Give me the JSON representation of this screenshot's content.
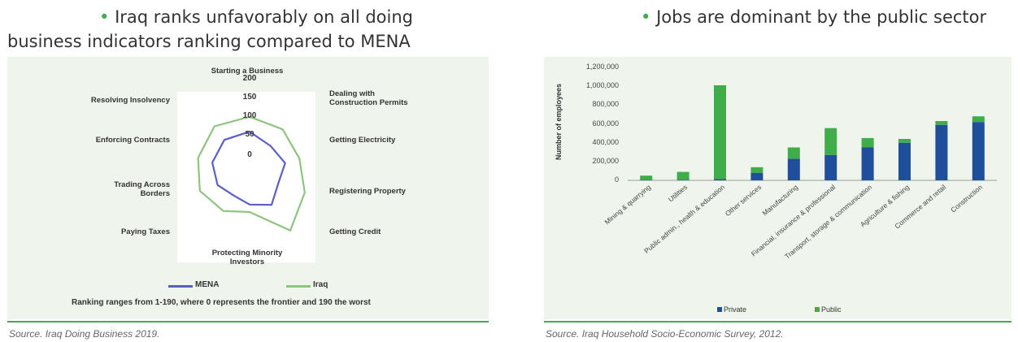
{
  "left": {
    "headline_line1": "Iraq ranks unfavorably on all doing",
    "headline_line2": "business indicators ranking compared to MENA",
    "bullet": "•",
    "footnote": "Ranking ranges from 1-190, where 0 represents the frontier and 190 the worst",
    "source": "Source. Iraq Doing Business 2019.",
    "colors": {
      "mena": "#5b5fc4",
      "iraq": "#8fc37f",
      "accent": "#3fae49"
    }
  },
  "right": {
    "headline": "Jobs are dominant by the public sector",
    "bullet": "•",
    "source": "Source. Iraq Household Socio-Economic Survey, 2012.",
    "colors": {
      "private": "#1f4e9c",
      "public": "#3fae49"
    }
  },
  "chart_data": [
    {
      "type": "radar",
      "categories": [
        "Starting a Business",
        "Dealing with Construction Permits",
        "Getting Electricity",
        "Registering Property",
        "Getting Credit",
        "Protecting Minority Investors",
        "Paying Taxes",
        "Trading Across Borders",
        "Enforcing Contracts",
        "Resolving Insolvency"
      ],
      "category_lines": [
        [
          "Starting a Business"
        ],
        [
          "Dealing with",
          "Construction Permits"
        ],
        [
          "Getting Electricity"
        ],
        [
          "Registering Property"
        ],
        [
          "Getting Credit"
        ],
        [
          "Protecting Minority",
          "Investors"
        ],
        [
          "Paying Taxes"
        ],
        [
          "Trading Across",
          "Borders"
        ],
        [
          "Enforcing Contracts"
        ],
        [
          "Resolving Insolvency"
        ]
      ],
      "radial_ticks": [
        "200",
        "150",
        "100",
        "50",
        "0"
      ],
      "rlim": [
        0,
        200
      ],
      "series": [
        {
          "name": "MENA",
          "values": [
            115,
            95,
            100,
            80,
            100,
            80,
            70,
            90,
            105,
            115
          ]
        },
        {
          "name": "Iraq",
          "values": [
            155,
            150,
            140,
            155,
            185,
            100,
            120,
            140,
            145,
            160
          ]
        }
      ],
      "legend_position": "bottom"
    },
    {
      "type": "bar",
      "stacked": true,
      "categories": [
        "Mining & quarrying",
        "Utilities",
        "Public admin., health & education",
        "Other services",
        "Manufacturing",
        "Financial, insurance & professional",
        "Transport, storage & communication",
        "Agriculture & fishing",
        "Commerce and retail",
        "Construction"
      ],
      "series": [
        {
          "name": "Private",
          "values": [
            5000,
            5000,
            15000,
            80000,
            230000,
            270000,
            350000,
            400000,
            590000,
            620000
          ]
        },
        {
          "name": "Public",
          "values": [
            45000,
            85000,
            995000,
            60000,
            120000,
            285000,
            100000,
            40000,
            40000,
            60000
          ]
        }
      ],
      "ylabel": "Number of employees",
      "yticks": [
        "0",
        "200,000",
        "400,000",
        "600,000",
        "800,000",
        "1,000,000",
        "1,200,000"
      ],
      "ylim": [
        0,
        1200000
      ],
      "legend_position": "bottom"
    }
  ]
}
